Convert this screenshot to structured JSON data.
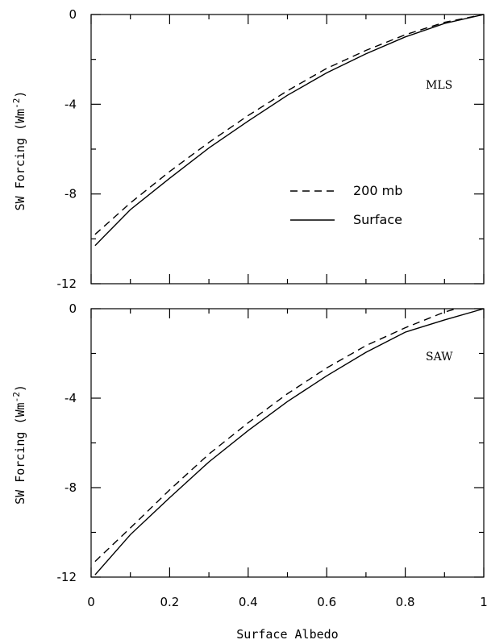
{
  "chart_data": [
    {
      "type": "line",
      "panel_label": "MLS",
      "ylabel": "SW Forcing (Wm",
      "ylabel_sup": "-2",
      "ylabel_close": ")",
      "xlim": [
        0,
        1
      ],
      "ylim": [
        -12,
        0
      ],
      "y_ticks": [
        "0",
        "-4",
        "-8",
        "-12"
      ],
      "legend": {
        "placement": "center-right",
        "entries": [
          "200 mb",
          "Surface"
        ]
      },
      "series": [
        {
          "name": "200 mb",
          "style": "dashed",
          "x": [
            0.01,
            0.1,
            0.2,
            0.3,
            0.4,
            0.5,
            0.6,
            0.7,
            0.8,
            0.9,
            1.0
          ],
          "y": [
            -9.8,
            -8.4,
            -7.0,
            -5.7,
            -4.5,
            -3.4,
            -2.4,
            -1.6,
            -0.9,
            -0.35,
            0.0
          ]
        },
        {
          "name": "Surface",
          "style": "solid",
          "x": [
            0.01,
            0.1,
            0.2,
            0.3,
            0.4,
            0.5,
            0.6,
            0.7,
            0.8,
            0.9,
            1.0
          ],
          "y": [
            -10.3,
            -8.7,
            -7.3,
            -5.95,
            -4.75,
            -3.6,
            -2.6,
            -1.75,
            -1.0,
            -0.4,
            0.0
          ]
        }
      ]
    },
    {
      "type": "line",
      "panel_label": "SAW",
      "xlabel": "Surface Albedo",
      "ylabel": "SW Forcing (Wm",
      "ylabel_sup": "-2",
      "ylabel_close": ")",
      "xlim": [
        0,
        1
      ],
      "ylim": [
        -12,
        0
      ],
      "x_ticks": [
        "0",
        "0.2",
        "0.4",
        "0.6",
        "0.8",
        "1"
      ],
      "y_ticks": [
        "0",
        "-4",
        "-8",
        "-12"
      ],
      "series": [
        {
          "name": "200 mb",
          "style": "dashed",
          "x": [
            0.01,
            0.1,
            0.2,
            0.3,
            0.4,
            0.5,
            0.6,
            0.7,
            0.8,
            0.9,
            0.93
          ],
          "y": [
            -11.3,
            -9.8,
            -8.1,
            -6.5,
            -5.1,
            -3.8,
            -2.65,
            -1.65,
            -0.85,
            -0.15,
            0.0
          ]
        },
        {
          "name": "Surface",
          "style": "solid",
          "x": [
            0.01,
            0.1,
            0.2,
            0.3,
            0.4,
            0.5,
            0.6,
            0.7,
            0.8,
            0.9,
            1.0
          ],
          "y": [
            -11.9,
            -10.1,
            -8.45,
            -6.85,
            -5.45,
            -4.15,
            -3.0,
            -1.95,
            -1.05,
            -0.5,
            0.0
          ]
        }
      ]
    }
  ]
}
